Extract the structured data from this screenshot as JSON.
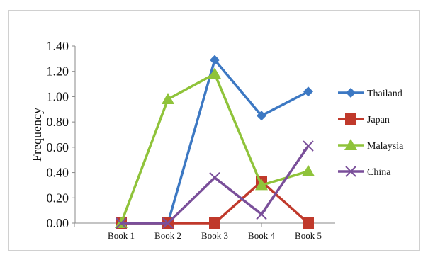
{
  "chart_data": {
    "type": "line",
    "categories": [
      "Book 1",
      "Book 2",
      "Book 3",
      "Book 4",
      "Book 5"
    ],
    "ylabel": "Frequency",
    "ylim": [
      0,
      1.4
    ],
    "yticks": [
      "0.00",
      "0.20",
      "0.40",
      "0.60",
      "0.80",
      "1.00",
      "1.20",
      "1.40"
    ],
    "grid": false,
    "legend": "right",
    "series": [
      {
        "name": "Thailand",
        "values": [
          0,
          0,
          1.29,
          0.85,
          1.04
        ],
        "color": "#3c78c3",
        "marker": "diamond"
      },
      {
        "name": "Japan",
        "values": [
          0,
          0,
          0,
          0.33,
          0
        ],
        "color": "#c0392b",
        "marker": "square"
      },
      {
        "name": "Malaysia",
        "values": [
          0,
          0.98,
          1.18,
          0.3,
          0.41
        ],
        "color": "#8fc33a",
        "marker": "triangle"
      },
      {
        "name": "China",
        "values": [
          0,
          0,
          0.36,
          0.07,
          0.61
        ],
        "color": "#7a4f9a",
        "marker": "x"
      }
    ]
  }
}
